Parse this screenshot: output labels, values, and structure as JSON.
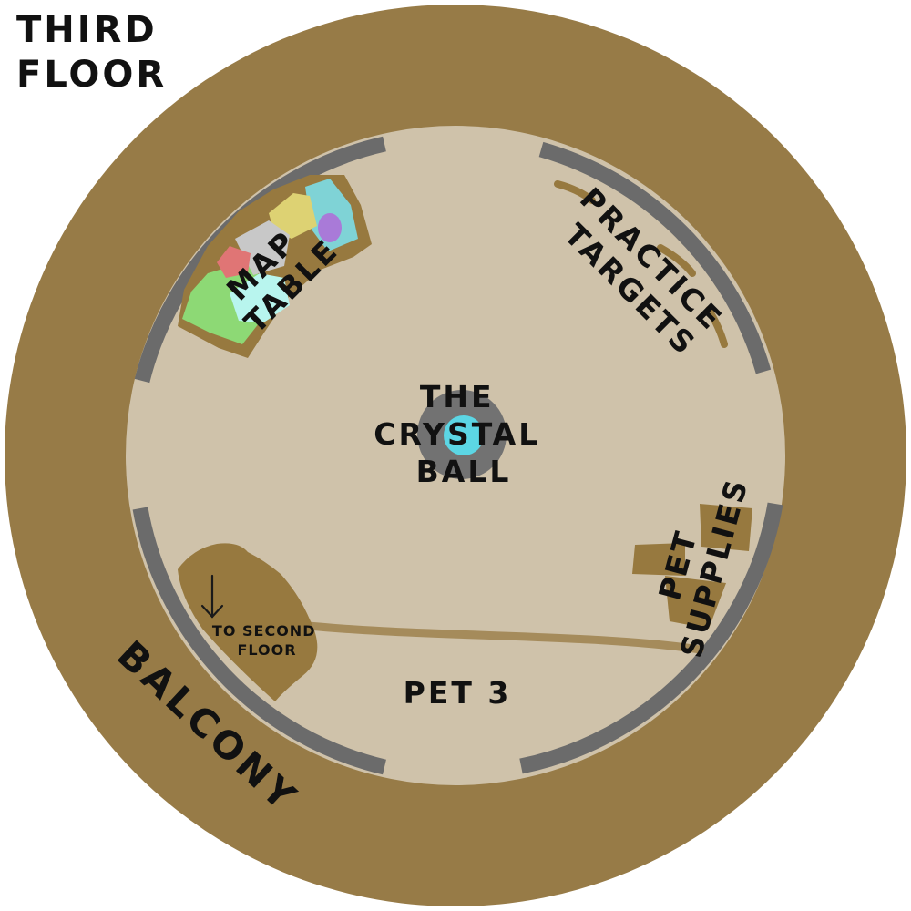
{
  "floor_title": [
    "THIRD",
    "FLOOR"
  ],
  "labels": {
    "balcony": "BALCONY",
    "crystal_ball": [
      "THE",
      "CRYSTAL",
      "BALL"
    ],
    "map_table": [
      "MAP",
      "TABLE"
    ],
    "practice_targets": [
      "PRACTICE",
      "TARGETS"
    ],
    "pet_supplies": [
      "PET",
      "SUPPLIES"
    ],
    "pet_3": "PET 3",
    "stairs": [
      "TO SECOND",
      "FLOOR"
    ]
  },
  "icons": {
    "stairs_arrow": "arrow-down-icon"
  },
  "colors": {
    "balcony": "#977b47",
    "floor": "#cfc2aa",
    "wall": "#6b6b6b",
    "furniture": "#97793f",
    "crystal_ring": "#727272",
    "crystal_orb": "#5cd6e4",
    "map_green": "#8dd975",
    "map_cyan": "#7fd3d6",
    "map_yellow": "#ddd273",
    "map_red": "#e07575",
    "map_gray": "#c8c8c8",
    "map_purple": "#a97ad8",
    "map_pale": "#b8f5ee",
    "text": "#111111"
  }
}
